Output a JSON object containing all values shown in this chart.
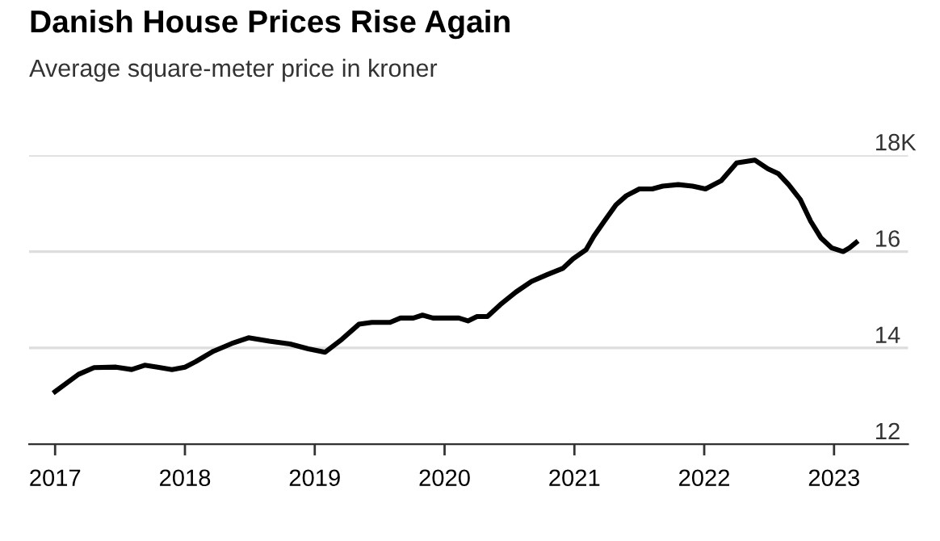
{
  "chart_data": {
    "type": "line",
    "title": "Danish House Prices Rise Again",
    "subtitle": "Average square-meter price in kroner",
    "x": [
      2017.0,
      2017.18,
      2017.3,
      2017.47,
      2017.59,
      2017.69,
      2017.79,
      2017.9,
      2018.0,
      2018.08,
      2018.22,
      2018.36,
      2018.49,
      2018.65,
      2018.81,
      2018.95,
      2019.08,
      2019.21,
      2019.34,
      2019.44,
      2019.58,
      2019.66,
      2019.76,
      2019.83,
      2019.91,
      2020.11,
      2020.18,
      2020.25,
      2020.33,
      2020.43,
      2020.55,
      2020.67,
      2020.79,
      2020.91,
      2020.99,
      2021.09,
      2021.15,
      2021.23,
      2021.32,
      2021.4,
      2021.5,
      2021.6,
      2021.68,
      2021.8,
      2021.91,
      2022.01,
      2022.13,
      2022.25,
      2022.39,
      2022.49,
      2022.57,
      2022.65,
      2022.74,
      2022.82,
      2022.9,
      2022.98,
      2023.07,
      2023.12,
      2023.17
    ],
    "series": [
      {
        "color": "#000000",
        "values": [
          13.09,
          13.45,
          13.59,
          13.6,
          13.55,
          13.64,
          13.6,
          13.55,
          13.6,
          13.71,
          13.93,
          14.09,
          14.21,
          14.14,
          14.08,
          13.98,
          13.91,
          14.18,
          14.49,
          14.53,
          14.53,
          14.62,
          14.62,
          14.68,
          14.62,
          14.62,
          14.56,
          14.65,
          14.65,
          14.9,
          15.16,
          15.38,
          15.52,
          15.65,
          15.85,
          16.04,
          16.32,
          16.63,
          16.97,
          17.16,
          17.3,
          17.3,
          17.36,
          17.39,
          17.36,
          17.3,
          17.47,
          17.84,
          17.9,
          17.72,
          17.62,
          17.39,
          17.08,
          16.63,
          16.28,
          16.08,
          16.0,
          16.08,
          16.19
        ]
      }
    ],
    "xlim": [
      2016.8,
      2023.57
    ],
    "xticks": [
      2017,
      2018,
      2019,
      2020,
      2021,
      2022,
      2023
    ],
    "ylim": [
      12,
      18
    ],
    "yticks": [
      12,
      14,
      16,
      {
        "value": 18,
        "label": "18K"
      }
    ],
    "grid": "y",
    "legend": false,
    "marker": "none",
    "line_style": "solid"
  }
}
